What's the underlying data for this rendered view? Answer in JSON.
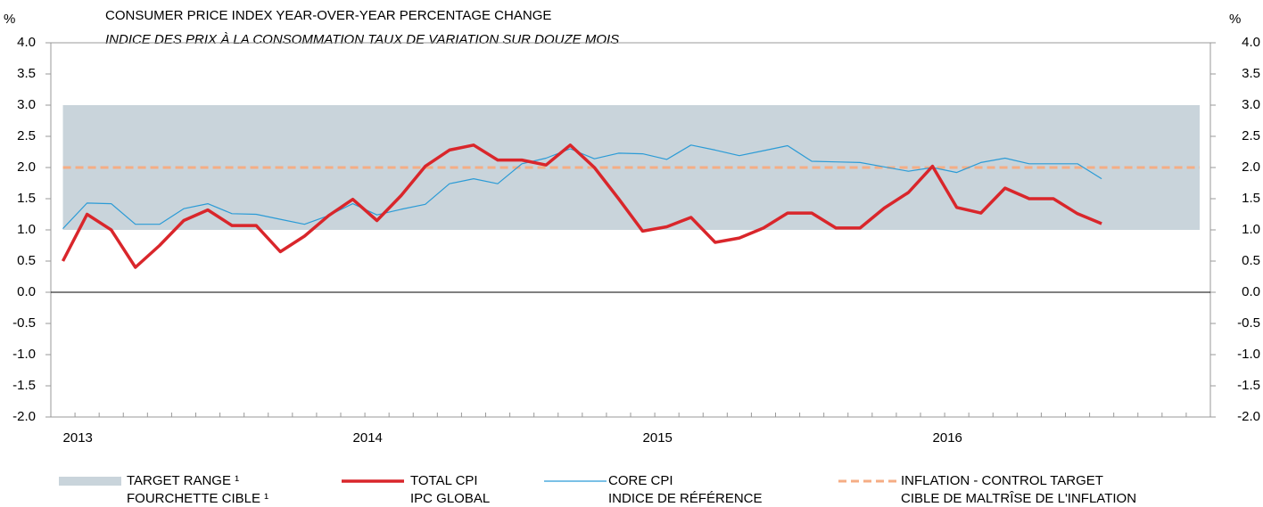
{
  "chart_data": {
    "type": "line",
    "title": "CONSUMER PRICE INDEX YEAR-OVER-YEAR PERCENTAGE CHANGE",
    "subtitle": "INDICE DES PRIX À LA CONSOMMATION TAUX DE VARIATION SUR DOUZE MOIS",
    "y_unit": "%",
    "categories": [
      "2013",
      null,
      null,
      null,
      null,
      null,
      null,
      null,
      null,
      null,
      null,
      null,
      "2014",
      null,
      null,
      null,
      null,
      null,
      null,
      null,
      null,
      null,
      null,
      null,
      "2015",
      null,
      null,
      null,
      null,
      null,
      null,
      null,
      null,
      null,
      null,
      null,
      "2016",
      null,
      null,
      null,
      null,
      null,
      null,
      null,
      null,
      null,
      null,
      null
    ],
    "target_range": {
      "name": "TARGET RANGE ¹",
      "name_fr": "FOURCHETTE CIBLE ¹",
      "color": "#c9d4db",
      "values": [
        1,
        3
      ]
    },
    "target": {
      "name": "INFLATION - CONTROL TARGET",
      "name_fr": "CIBLE DE MALTRÎSE DE L'INFLATION",
      "color": "#f5ad84",
      "value": 2
    },
    "series": [
      {
        "name": "TOTAL CPI",
        "name_fr": "IPC GLOBAL",
        "color": "#d9262b",
        "width": 3.5,
        "values": [
          0.5,
          1.25,
          1.0,
          0.4,
          0.75,
          1.15,
          1.32,
          1.07,
          1.07,
          0.65,
          0.9,
          1.23,
          1.49,
          1.15,
          1.55,
          2.02,
          2.28,
          2.36,
          2.12,
          2.12,
          2.04,
          2.36,
          2.0,
          1.5,
          0.98,
          1.05,
          1.2,
          0.8,
          0.87,
          1.03,
          1.27,
          1.27,
          1.03,
          1.03,
          1.35,
          1.6,
          2.02,
          1.36,
          1.27,
          1.67,
          1.5,
          1.5,
          1.26,
          1.1,
          null,
          null,
          null,
          null
        ]
      },
      {
        "name": "CORE CPI",
        "name_fr": "INDICE DE RÉFÉRENCE",
        "color": "#2b9bd6",
        "width": 1.2,
        "values": [
          1.02,
          1.43,
          1.42,
          1.09,
          1.09,
          1.34,
          1.42,
          1.26,
          1.25,
          1.17,
          1.09,
          1.23,
          1.42,
          1.24,
          1.33,
          1.41,
          1.74,
          1.82,
          1.74,
          2.06,
          2.15,
          2.3,
          2.14,
          2.23,
          2.22,
          2.13,
          2.36,
          2.28,
          2.19,
          2.27,
          2.35,
          2.1,
          2.09,
          2.08,
          2.01,
          1.94,
          2.0,
          1.92,
          2.08,
          2.15,
          2.06,
          2.06,
          2.06,
          1.82,
          null,
          null,
          null,
          null
        ]
      }
    ],
    "ylim": [
      -2,
      4
    ],
    "yticks": [
      {
        "value": -2,
        "label": "-2.0"
      },
      {
        "value": -1.5,
        "label": "-1.5"
      },
      {
        "value": -1,
        "label": "-1.0"
      },
      {
        "value": -0.5,
        "label": "-0.5"
      },
      {
        "value": 0,
        "label": "0.0"
      },
      {
        "value": 0.5,
        "label": "0.5"
      },
      {
        "value": 1,
        "label": "1.0"
      },
      {
        "value": 1.5,
        "label": "1.5"
      },
      {
        "value": 2,
        "label": "2.0"
      },
      {
        "value": 2.5,
        "label": "2.5"
      },
      {
        "value": 3,
        "label": "3.0"
      },
      {
        "value": 3.5,
        "label": "3.5"
      },
      {
        "value": 4,
        "label": "4.0"
      }
    ]
  }
}
